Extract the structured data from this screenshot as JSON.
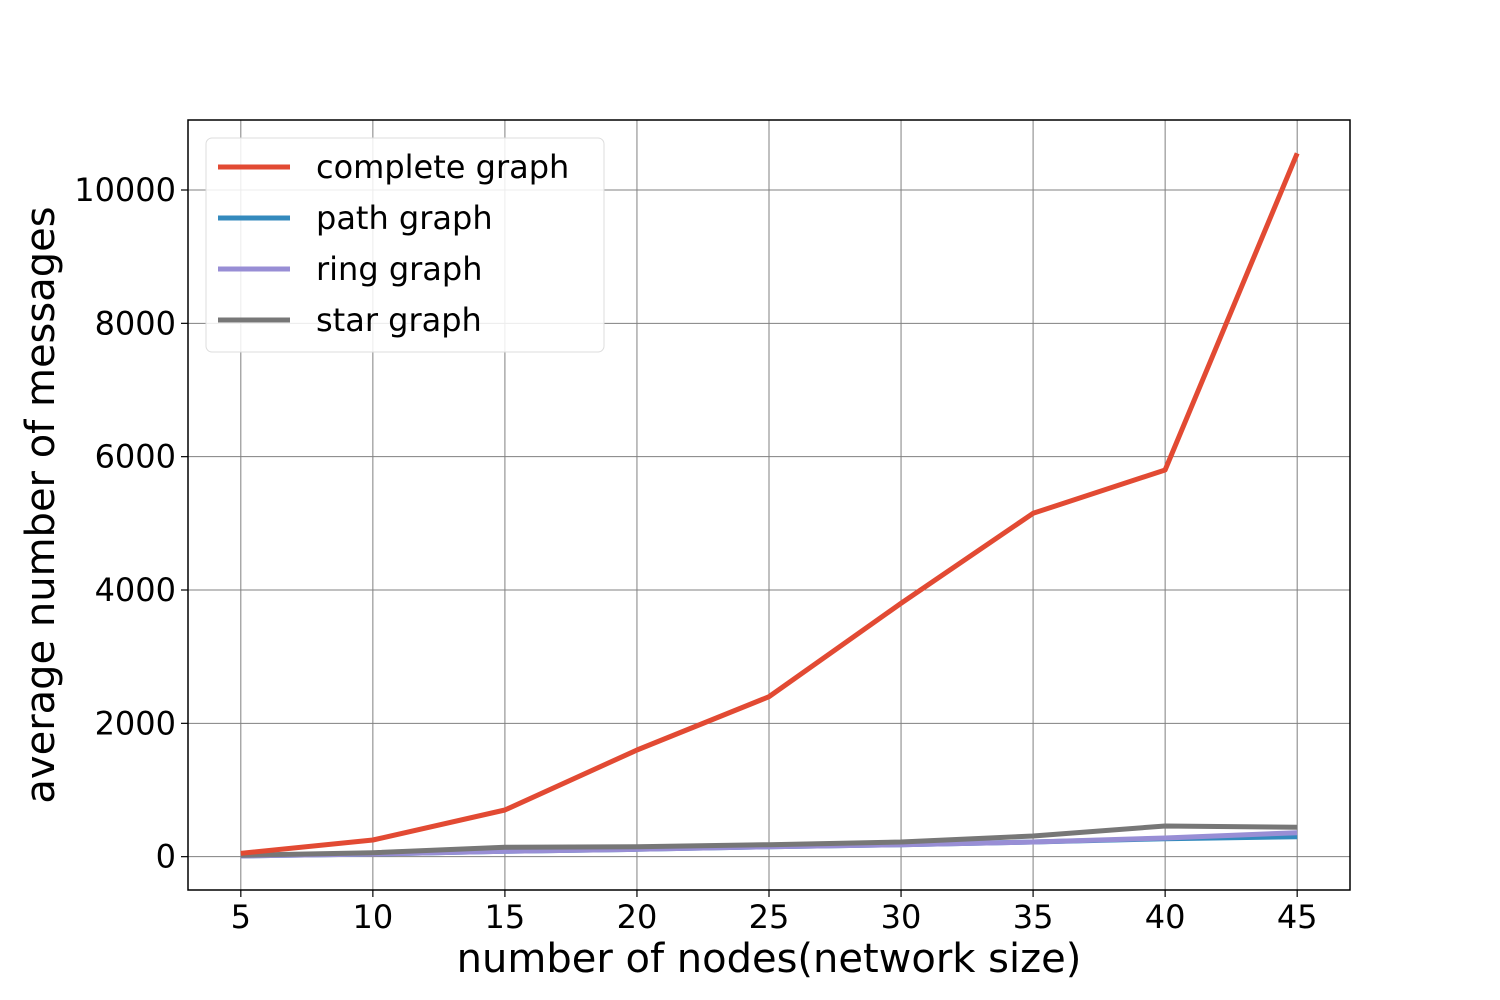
{
  "chart_data": {
    "type": "line",
    "title": "",
    "xlabel": "number of nodes(network size)",
    "ylabel": "average number of messages",
    "x": [
      5,
      10,
      15,
      20,
      25,
      30,
      35,
      40,
      45
    ],
    "xticks": [
      "5",
      "10",
      "15",
      "20",
      "25",
      "30",
      "35",
      "40",
      "45"
    ],
    "yticks": [
      "0",
      "2000",
      "4000",
      "6000",
      "8000",
      "10000"
    ],
    "ytick_values": [
      0,
      2000,
      4000,
      6000,
      8000,
      10000
    ],
    "xlim": [
      3,
      47
    ],
    "ylim": [
      -500,
      11050
    ],
    "grid": true,
    "legend_position": "top-left",
    "series": [
      {
        "name": "complete graph",
        "color": "#e24a33",
        "values": [
          50,
          250,
          700,
          1600,
          2400,
          3800,
          5150,
          5800,
          10550
        ]
      },
      {
        "name": "path graph",
        "color": "#348abd",
        "values": [
          10,
          40,
          80,
          110,
          150,
          180,
          220,
          270,
          300
        ]
      },
      {
        "name": "ring graph",
        "color": "#988ed5",
        "values": [
          10,
          40,
          80,
          110,
          150,
          180,
          220,
          280,
          360
        ]
      },
      {
        "name": "star graph",
        "color": "#777777",
        "values": [
          20,
          60,
          140,
          150,
          180,
          220,
          310,
          460,
          440
        ]
      }
    ]
  }
}
